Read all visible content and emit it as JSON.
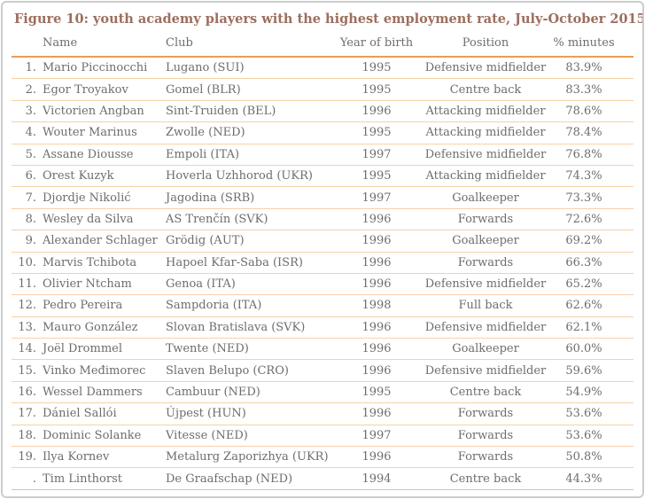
{
  "title": "Figure 10: youth academy players with the highest employment rate, July-October 2015",
  "chart_data": {
    "type": "table",
    "title": "Figure 10: youth academy players with the highest employment rate, July-October 2015",
    "columns": [
      "Name",
      "Club",
      "Year of birth",
      "Position",
      "% minutes"
    ],
    "rows": [
      {
        "rank": "1.",
        "name": "Mario Piccinocchi",
        "club": "Lugano (SUI)",
        "year": "1995",
        "position": "Defensive midfielder",
        "minutes": "83.9%"
      },
      {
        "rank": "2.",
        "name": "Egor Troyakov",
        "club": "Gomel (BLR)",
        "year": "1995",
        "position": "Centre back",
        "minutes": "83.3%"
      },
      {
        "rank": "3.",
        "name": "Victorien Angban",
        "club": "Sint-Truiden (BEL)",
        "year": "1996",
        "position": "Attacking midfielder",
        "minutes": "78.6%"
      },
      {
        "rank": "4.",
        "name": "Wouter Marinus",
        "club": "Zwolle (NED)",
        "year": "1995",
        "position": "Attacking midfielder",
        "minutes": "78.4%"
      },
      {
        "rank": "5.",
        "name": "Assane Diousse",
        "club": "Empoli (ITA)",
        "year": "1997",
        "position": "Defensive midfielder",
        "minutes": "76.8%"
      },
      {
        "rank": "6.",
        "name": "Orest Kuzyk",
        "club": "Hoverla Uzhhorod (UKR)",
        "year": "1995",
        "position": "Attacking midfielder",
        "minutes": "74.3%"
      },
      {
        "rank": "7.",
        "name": "Djordje Nikolić",
        "club": "Jagodina (SRB)",
        "year": "1997",
        "position": "Goalkeeper",
        "minutes": "73.3%"
      },
      {
        "rank": "8.",
        "name": "Wesley da Silva",
        "club": "AS Trenčín (SVK)",
        "year": "1996",
        "position": "Forwards",
        "minutes": "72.6%"
      },
      {
        "rank": "9.",
        "name": "Alexander Schlager",
        "club": "Grödig (AUT)",
        "year": "1996",
        "position": "Goalkeeper",
        "minutes": "69.2%"
      },
      {
        "rank": "10.",
        "name": "Marvis Tchibota",
        "club": "Hapoel Kfar-Saba (ISR)",
        "year": "1996",
        "position": "Forwards",
        "minutes": "66.3%"
      },
      {
        "rank": "11.",
        "name": "Olivier Ntcham",
        "club": "Genoa (ITA)",
        "year": "1996",
        "position": "Defensive midfielder",
        "minutes": "65.2%"
      },
      {
        "rank": "12.",
        "name": "Pedro Pereira",
        "club": "Sampdoria (ITA)",
        "year": "1998",
        "position": "Full back",
        "minutes": "62.6%"
      },
      {
        "rank": "13.",
        "name": "Mauro González",
        "club": "Slovan Bratislava (SVK)",
        "year": "1996",
        "position": "Defensive midfielder",
        "minutes": "62.1%"
      },
      {
        "rank": "14.",
        "name": "Joël Drommel",
        "club": "Twente (NED)",
        "year": "1996",
        "position": "Goalkeeper",
        "minutes": "60.0%"
      },
      {
        "rank": "15.",
        "name": "Vinko Međimorec",
        "club": "Slaven Belupo (CRO)",
        "year": "1996",
        "position": "Defensive midfielder",
        "minutes": "59.6%"
      },
      {
        "rank": "16.",
        "name": "Wessel Dammers",
        "club": "Cambuur (NED)",
        "year": "1995",
        "position": "Centre back",
        "minutes": "54.9%"
      },
      {
        "rank": "17.",
        "name": "Dániel Sallói",
        "club": "Újpest (HUN)",
        "year": "1996",
        "position": "Forwards",
        "minutes": "53.6%"
      },
      {
        "rank": "18.",
        "name": "Dominic Solanke",
        "club": "Vitesse (NED)",
        "year": "1997",
        "position": "Forwards",
        "minutes": "53.6%"
      },
      {
        "rank": "19.",
        "name": "Ilya Kornev",
        "club": "Metalurg Zaporizhya (UKR)",
        "year": "1996",
        "position": "Forwards",
        "minutes": "50.8%"
      },
      {
        "rank": ".",
        "name": "Tim Linthorst",
        "club": "De Graafschap (NED)",
        "year": "1994",
        "position": "Centre back",
        "minutes": "44.3%"
      }
    ]
  },
  "colors": {
    "title": "#9c6f5e",
    "text": "#6d6d6d",
    "header_rule": "#eb9c59",
    "row_rule": "#f7d1a9",
    "bottom_rule": "#f2b98d",
    "frame_border": "#cccccc"
  }
}
